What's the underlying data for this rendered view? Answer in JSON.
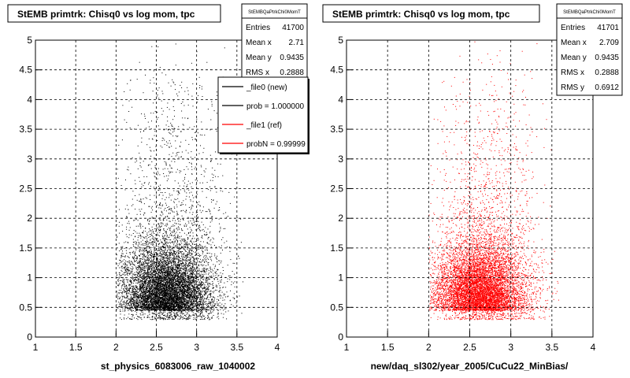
{
  "chart_data": [
    {
      "type": "scatter",
      "title": "StEMB primtrk: Chisq0 vs log mom, tpc",
      "xlabel": "st_physics_6083006_raw_1040002",
      "ylabel": "",
      "xlim": [
        1,
        4
      ],
      "ylim": [
        0,
        5
      ],
      "xticks": [
        "1",
        "1.5",
        "2",
        "2.5",
        "3",
        "3.5",
        "4"
      ],
      "yticks": [
        "0",
        "0.5",
        "1",
        "1.5",
        "2",
        "2.5",
        "3",
        "3.5",
        "4",
        "4.5",
        "5"
      ],
      "grid": true,
      "color": "#000000",
      "stats": {
        "name": "StEMBQaPtrkChi0MomT",
        "rows": [
          {
            "label": "Entries",
            "value": "41700"
          },
          {
            "label": "Mean x",
            "value": "2.71"
          },
          {
            "label": "Mean y",
            "value": "0.9435"
          },
          {
            "label": "RMS x",
            "value": "0.2888"
          }
        ]
      },
      "legend": {
        "placement": "top-right",
        "entries": [
          {
            "label": "_file0 (new)",
            "color": "#000000"
          },
          {
            "label": "prob = 1.000000",
            "color": "#000000"
          },
          {
            "label": "_file1 (ref)",
            "color": "#ff0000"
          },
          {
            "label": "probN = 0.99999",
            "color": "#ff0000"
          }
        ]
      },
      "density": {
        "x_mean": 2.71,
        "y_mean": 0.9435,
        "x_rms": 0.2888,
        "y_rms": 0.6912,
        "x_min": 2.0,
        "x_max": 3.6,
        "y_min": 0.3
      }
    },
    {
      "type": "scatter",
      "title": "StEMB primtrk: Chisq0 vs log mom, tpc",
      "xlabel": "new/daq_sl302/year_2005/CuCu22_MinBias/",
      "ylabel": "",
      "xlim": [
        1,
        4
      ],
      "ylim": [
        0,
        5
      ],
      "xticks": [
        "1",
        "1.5",
        "2",
        "2.5",
        "3",
        "3.5",
        "4"
      ],
      "yticks": [
        "0",
        "0.5",
        "1",
        "1.5",
        "2",
        "2.5",
        "3",
        "3.5",
        "4",
        "4.5",
        "5"
      ],
      "grid": true,
      "color": "#ff0000",
      "stats": {
        "name": "StEMBQaPtrkChi0MomT",
        "rows": [
          {
            "label": "Entries",
            "value": "41701"
          },
          {
            "label": "Mean x",
            "value": "2.709"
          },
          {
            "label": "Mean y",
            "value": "0.9435"
          },
          {
            "label": "RMS x",
            "value": "0.2888"
          },
          {
            "label": "RMS y",
            "value": "0.6912"
          }
        ]
      },
      "density": {
        "x_mean": 2.709,
        "y_mean": 0.9435,
        "x_rms": 0.2888,
        "y_rms": 0.6912,
        "x_min": 2.0,
        "x_max": 3.6,
        "y_min": 0.3
      }
    }
  ]
}
